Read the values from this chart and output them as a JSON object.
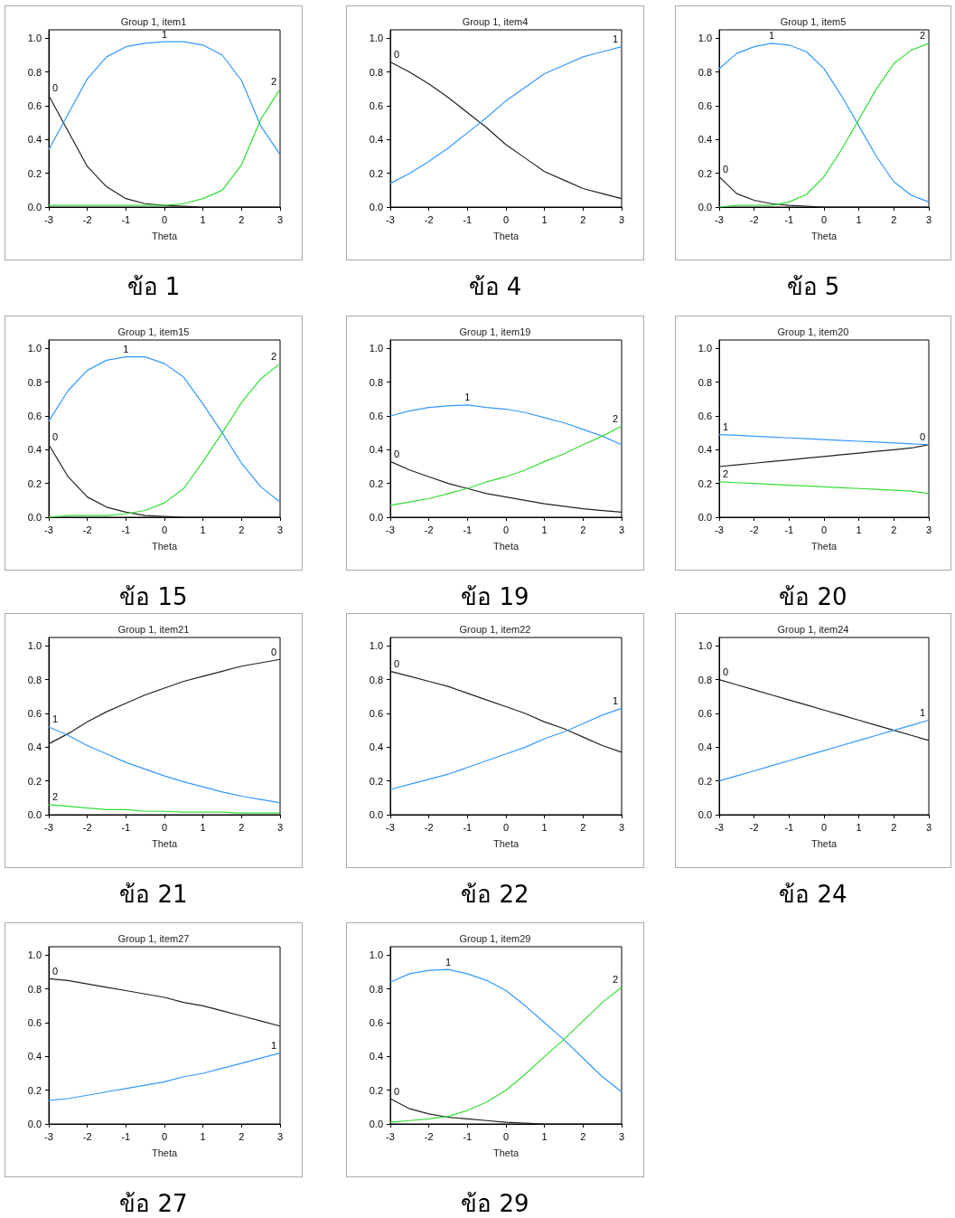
{
  "chart_data": [
    {
      "type": "line",
      "title": "Group 1, item1",
      "xlabel": "Theta",
      "annotations": [
        "ข้อ 1"
      ],
      "xlim": [
        -3,
        3
      ],
      "xticks": [
        -3,
        -2,
        -1,
        0,
        1,
        2,
        3
      ],
      "ylim": [
        0,
        1.05
      ],
      "yticks": [
        {
          "value": 0,
          "label": "0.0"
        },
        {
          "value": 0.2,
          "label": "0.2"
        },
        {
          "value": 0.4,
          "label": "0.4"
        },
        {
          "value": 0.6,
          "label": "0.6"
        },
        {
          "value": 0.8,
          "label": "0.8"
        },
        {
          "value": 1,
          "label": "1.0"
        }
      ],
      "grid": false,
      "legend": false,
      "marker": "none",
      "x": [
        -3,
        -2.5,
        -2,
        -1.5,
        -1,
        -0.5,
        0,
        0.5,
        1,
        1.5,
        2,
        2.5,
        3
      ],
      "series": [
        {
          "name": "0",
          "color": "#222222",
          "values": [
            0.66,
            0.45,
            0.24,
            0.12,
            0.05,
            0.02,
            0.01,
            0.005,
            0,
            0,
            0,
            0,
            0
          ]
        },
        {
          "name": "1",
          "color": "#3399ff",
          "values": [
            0.34,
            0.55,
            0.76,
            0.89,
            0.95,
            0.97,
            0.98,
            0.98,
            0.96,
            0.9,
            0.75,
            0.48,
            0.31
          ]
        },
        {
          "name": "2",
          "color": "#33dd33",
          "values": [
            0.01,
            0.01,
            0.01,
            0.01,
            0.01,
            0.01,
            0.01,
            0.02,
            0.05,
            0.1,
            0.25,
            0.52,
            0.7
          ]
        }
      ]
    },
    {
      "type": "line",
      "title": "Group 1, item4",
      "xlabel": "Theta",
      "annotations": [
        "ข้อ 4"
      ],
      "xlim": [
        -3,
        3
      ],
      "xticks": [
        -3,
        -2,
        -1,
        0,
        1,
        2,
        3
      ],
      "ylim": [
        0,
        1.05
      ],
      "yticks": [
        {
          "value": 0,
          "label": "0.0"
        },
        {
          "value": 0.2,
          "label": "0.2"
        },
        {
          "value": 0.4,
          "label": "0.4"
        },
        {
          "value": 0.6,
          "label": "0.6"
        },
        {
          "value": 0.8,
          "label": "0.8"
        },
        {
          "value": 1,
          "label": "1.0"
        }
      ],
      "grid": false,
      "legend": false,
      "marker": "none",
      "x": [
        -3,
        -2.5,
        -2,
        -1.5,
        -1,
        -0.5,
        0,
        0.5,
        1,
        1.5,
        2,
        2.5,
        3
      ],
      "series": [
        {
          "name": "0",
          "color": "#222222",
          "values": [
            0.86,
            0.8,
            0.73,
            0.65,
            0.56,
            0.47,
            0.37,
            0.29,
            0.21,
            0.16,
            0.11,
            0.08,
            0.05
          ]
        },
        {
          "name": "1",
          "color": "#3399ff",
          "values": [
            0.14,
            0.2,
            0.27,
            0.35,
            0.44,
            0.53,
            0.63,
            0.71,
            0.79,
            0.84,
            0.89,
            0.92,
            0.95
          ]
        }
      ]
    },
    {
      "type": "line",
      "title": "Group 1, item5",
      "xlabel": "Theta",
      "annotations": [
        "ข้อ 5"
      ],
      "xlim": [
        -3,
        3
      ],
      "xticks": [
        -3,
        -2,
        -1,
        0,
        1,
        2,
        3
      ],
      "ylim": [
        0,
        1.05
      ],
      "yticks": [
        {
          "value": 0,
          "label": "0.0"
        },
        {
          "value": 0.2,
          "label": "0.2"
        },
        {
          "value": 0.4,
          "label": "0.4"
        },
        {
          "value": 0.6,
          "label": "0.6"
        },
        {
          "value": 0.8,
          "label": "0.8"
        },
        {
          "value": 1,
          "label": "1.0"
        }
      ],
      "grid": false,
      "legend": false,
      "marker": "none",
      "x": [
        -3,
        -2.5,
        -2,
        -1.5,
        -1,
        -0.5,
        0,
        0.5,
        1,
        1.5,
        2,
        2.5,
        3
      ],
      "series": [
        {
          "name": "0",
          "color": "#222222",
          "values": [
            0.18,
            0.08,
            0.04,
            0.02,
            0.01,
            0.005,
            0,
            0,
            0,
            0,
            0,
            0,
            0
          ]
        },
        {
          "name": "1",
          "color": "#3399ff",
          "values": [
            0.82,
            0.91,
            0.95,
            0.97,
            0.96,
            0.92,
            0.82,
            0.66,
            0.48,
            0.3,
            0.15,
            0.07,
            0.03
          ]
        },
        {
          "name": "2",
          "color": "#33dd33",
          "values": [
            0,
            0.01,
            0.01,
            0.01,
            0.03,
            0.075,
            0.18,
            0.34,
            0.52,
            0.7,
            0.85,
            0.93,
            0.97
          ]
        }
      ]
    },
    {
      "type": "line",
      "title": "Group 1, item15",
      "xlabel": "Theta",
      "annotations": [
        "ข้อ 15"
      ],
      "xlim": [
        -3,
        3
      ],
      "xticks": [
        -3,
        -2,
        -1,
        0,
        1,
        2,
        3
      ],
      "ylim": [
        0,
        1.05
      ],
      "yticks": [
        {
          "value": 0,
          "label": "0.0"
        },
        {
          "value": 0.2,
          "label": "0.2"
        },
        {
          "value": 0.4,
          "label": "0.4"
        },
        {
          "value": 0.6,
          "label": "0.6"
        },
        {
          "value": 0.8,
          "label": "0.8"
        },
        {
          "value": 1,
          "label": "1.0"
        }
      ],
      "grid": false,
      "legend": false,
      "marker": "none",
      "x": [
        -3,
        -2.5,
        -2,
        -1.5,
        -1,
        -0.5,
        0,
        0.5,
        1,
        1.5,
        2,
        2.5,
        3
      ],
      "series": [
        {
          "name": "0",
          "color": "#222222",
          "values": [
            0.43,
            0.24,
            0.12,
            0.06,
            0.03,
            0.01,
            0.005,
            0,
            0,
            0,
            0,
            0,
            0
          ]
        },
        {
          "name": "1",
          "color": "#3399ff",
          "values": [
            0.57,
            0.75,
            0.87,
            0.93,
            0.95,
            0.95,
            0.91,
            0.83,
            0.67,
            0.5,
            0.32,
            0.18,
            0.09
          ]
        },
        {
          "name": "2",
          "color": "#33dd33",
          "values": [
            0,
            0.01,
            0.01,
            0.01,
            0.02,
            0.04,
            0.085,
            0.17,
            0.33,
            0.5,
            0.68,
            0.82,
            0.91
          ]
        }
      ]
    },
    {
      "type": "line",
      "title": "Group 1, item19",
      "xlabel": "Theta",
      "annotations": [
        "ข้อ 19"
      ],
      "xlim": [
        -3,
        3
      ],
      "xticks": [
        -3,
        -2,
        -1,
        0,
        1,
        2,
        3
      ],
      "ylim": [
        0,
        1.05
      ],
      "yticks": [
        {
          "value": 0,
          "label": "0.0"
        },
        {
          "value": 0.2,
          "label": "0.2"
        },
        {
          "value": 0.4,
          "label": "0.4"
        },
        {
          "value": 0.6,
          "label": "0.6"
        },
        {
          "value": 0.8,
          "label": "0.8"
        },
        {
          "value": 1,
          "label": "1.0"
        }
      ],
      "grid": false,
      "legend": false,
      "marker": "none",
      "x": [
        -3,
        -2.5,
        -2,
        -1.5,
        -1,
        -0.5,
        0,
        0.5,
        1,
        1.5,
        2,
        2.5,
        3
      ],
      "series": [
        {
          "name": "0",
          "color": "#222222",
          "values": [
            0.33,
            0.28,
            0.24,
            0.2,
            0.17,
            0.14,
            0.12,
            0.1,
            0.08,
            0.065,
            0.05,
            0.04,
            0.03
          ]
        },
        {
          "name": "1",
          "color": "#3399ff",
          "values": [
            0.6,
            0.63,
            0.65,
            0.66,
            0.665,
            0.65,
            0.64,
            0.62,
            0.59,
            0.56,
            0.52,
            0.48,
            0.43
          ]
        },
        {
          "name": "2",
          "color": "#33dd33",
          "values": [
            0.07,
            0.09,
            0.11,
            0.14,
            0.17,
            0.21,
            0.24,
            0.28,
            0.33,
            0.375,
            0.43,
            0.48,
            0.54
          ]
        }
      ]
    },
    {
      "type": "line",
      "title": "Group 1, item20",
      "xlabel": "Theta",
      "annotations": [
        "ข้อ 20"
      ],
      "xlim": [
        -3,
        3
      ],
      "xticks": [
        -3,
        -2,
        -1,
        0,
        1,
        2,
        3
      ],
      "ylim": [
        0,
        1.05
      ],
      "yticks": [
        {
          "value": 0,
          "label": "0.0"
        },
        {
          "value": 0.2,
          "label": "0.2"
        },
        {
          "value": 0.4,
          "label": "0.4"
        },
        {
          "value": 0.6,
          "label": "0.6"
        },
        {
          "value": 0.8,
          "label": "0.8"
        },
        {
          "value": 1,
          "label": "1.0"
        }
      ],
      "grid": false,
      "legend": false,
      "marker": "none",
      "x": [
        -3,
        -2.5,
        -2,
        -1.5,
        -1,
        -0.5,
        0,
        0.5,
        1,
        1.5,
        2,
        2.5,
        3
      ],
      "series": [
        {
          "name": "0",
          "color": "#222222",
          "values": [
            0.3,
            0.31,
            0.32,
            0.33,
            0.34,
            0.35,
            0.36,
            0.37,
            0.38,
            0.39,
            0.4,
            0.41,
            0.43
          ]
        },
        {
          "name": "1",
          "color": "#3399ff",
          "values": [
            0.49,
            0.485,
            0.48,
            0.475,
            0.47,
            0.465,
            0.46,
            0.455,
            0.45,
            0.445,
            0.44,
            0.435,
            0.43
          ]
        },
        {
          "name": "2",
          "color": "#33dd33",
          "values": [
            0.21,
            0.205,
            0.2,
            0.195,
            0.19,
            0.185,
            0.18,
            0.175,
            0.17,
            0.165,
            0.16,
            0.155,
            0.14
          ]
        }
      ]
    },
    {
      "type": "line",
      "title": "Group 1, item21",
      "xlabel": "Theta",
      "annotations": [
        "ข้อ 21"
      ],
      "xlim": [
        -3,
        3
      ],
      "xticks": [
        -3,
        -2,
        -1,
        0,
        1,
        2,
        3
      ],
      "ylim": [
        0,
        1.05
      ],
      "yticks": [
        {
          "value": 0,
          "label": "0.0"
        },
        {
          "value": 0.2,
          "label": "0.2"
        },
        {
          "value": 0.4,
          "label": "0.4"
        },
        {
          "value": 0.6,
          "label": "0.6"
        },
        {
          "value": 0.8,
          "label": "0.8"
        },
        {
          "value": 1,
          "label": "1.0"
        }
      ],
      "grid": false,
      "legend": false,
      "marker": "none",
      "x": [
        -3,
        -2.5,
        -2,
        -1.5,
        -1,
        -0.5,
        0,
        0.5,
        1,
        1.5,
        2,
        2.5,
        3
      ],
      "series": [
        {
          "name": "0",
          "color": "#222222",
          "values": [
            0.42,
            0.48,
            0.55,
            0.61,
            0.66,
            0.71,
            0.75,
            0.79,
            0.82,
            0.85,
            0.88,
            0.9,
            0.92
          ]
        },
        {
          "name": "1",
          "color": "#3399ff",
          "values": [
            0.52,
            0.47,
            0.41,
            0.36,
            0.31,
            0.27,
            0.23,
            0.195,
            0.165,
            0.135,
            0.11,
            0.09,
            0.07
          ]
        },
        {
          "name": "2",
          "color": "#33dd33",
          "values": [
            0.06,
            0.05,
            0.04,
            0.03,
            0.03,
            0.02,
            0.02,
            0.015,
            0.015,
            0.015,
            0.01,
            0.01,
            0.01
          ]
        }
      ]
    },
    {
      "type": "line",
      "title": "Group 1, item22",
      "xlabel": "Theta",
      "annotations": [
        "ข้อ 22"
      ],
      "xlim": [
        -3,
        3
      ],
      "xticks": [
        -3,
        -2,
        -1,
        0,
        1,
        2,
        3
      ],
      "ylim": [
        0,
        1.05
      ],
      "yticks": [
        {
          "value": 0,
          "label": "0.0"
        },
        {
          "value": 0.2,
          "label": "0.2"
        },
        {
          "value": 0.4,
          "label": "0.4"
        },
        {
          "value": 0.6,
          "label": "0.6"
        },
        {
          "value": 0.8,
          "label": "0.8"
        },
        {
          "value": 1,
          "label": "1.0"
        }
      ],
      "grid": false,
      "legend": false,
      "marker": "none",
      "x": [
        -3,
        -2.5,
        -2,
        -1.5,
        -1,
        -0.5,
        0,
        0.5,
        1,
        1.5,
        2,
        2.5,
        3
      ],
      "series": [
        {
          "name": "0",
          "color": "#222222",
          "values": [
            0.85,
            0.82,
            0.79,
            0.76,
            0.72,
            0.68,
            0.64,
            0.6,
            0.55,
            0.51,
            0.46,
            0.41,
            0.37
          ]
        },
        {
          "name": "1",
          "color": "#3399ff",
          "values": [
            0.15,
            0.18,
            0.21,
            0.24,
            0.28,
            0.32,
            0.36,
            0.4,
            0.45,
            0.49,
            0.54,
            0.59,
            0.63
          ]
        }
      ]
    },
    {
      "type": "line",
      "title": "Group 1, item24",
      "xlabel": "Theta",
      "annotations": [
        "ข้อ 24"
      ],
      "xlim": [
        -3,
        3
      ],
      "xticks": [
        -3,
        -2,
        -1,
        0,
        1,
        2,
        3
      ],
      "ylim": [
        0,
        1.05
      ],
      "yticks": [
        {
          "value": 0,
          "label": "0.0"
        },
        {
          "value": 0.2,
          "label": "0.2"
        },
        {
          "value": 0.4,
          "label": "0.4"
        },
        {
          "value": 0.6,
          "label": "0.6"
        },
        {
          "value": 0.8,
          "label": "0.8"
        },
        {
          "value": 1,
          "label": "1.0"
        }
      ],
      "grid": false,
      "legend": false,
      "marker": "none",
      "x": [
        -3,
        -2.5,
        -2,
        -1.5,
        -1,
        -0.5,
        0,
        0.5,
        1,
        1.5,
        2,
        2.5,
        3
      ],
      "series": [
        {
          "name": "0",
          "color": "#222222",
          "values": [
            0.8,
            0.77,
            0.74,
            0.71,
            0.68,
            0.65,
            0.62,
            0.59,
            0.56,
            0.53,
            0.5,
            0.47,
            0.44
          ]
        },
        {
          "name": "1",
          "color": "#3399ff",
          "values": [
            0.2,
            0.23,
            0.26,
            0.29,
            0.32,
            0.35,
            0.38,
            0.41,
            0.44,
            0.47,
            0.5,
            0.53,
            0.56
          ]
        }
      ]
    },
    {
      "type": "line",
      "title": "Group 1, item27",
      "xlabel": "Theta",
      "annotations": [
        "ข้อ 27"
      ],
      "xlim": [
        -3,
        3
      ],
      "xticks": [
        -3,
        -2,
        -1,
        0,
        1,
        2,
        3
      ],
      "ylim": [
        0,
        1.05
      ],
      "yticks": [
        {
          "value": 0,
          "label": "0.0"
        },
        {
          "value": 0.2,
          "label": "0.2"
        },
        {
          "value": 0.4,
          "label": "0.4"
        },
        {
          "value": 0.6,
          "label": "0.6"
        },
        {
          "value": 0.8,
          "label": "0.8"
        },
        {
          "value": 1,
          "label": "1.0"
        }
      ],
      "grid": false,
      "legend": false,
      "marker": "none",
      "x": [
        -3,
        -2.5,
        -2,
        -1.5,
        -1,
        -0.5,
        0,
        0.5,
        1,
        1.5,
        2,
        2.5,
        3
      ],
      "series": [
        {
          "name": "0",
          "color": "#222222",
          "values": [
            0.86,
            0.85,
            0.83,
            0.81,
            0.79,
            0.77,
            0.75,
            0.72,
            0.7,
            0.67,
            0.64,
            0.61,
            0.58
          ]
        },
        {
          "name": "1",
          "color": "#3399ff",
          "values": [
            0.14,
            0.15,
            0.17,
            0.19,
            0.21,
            0.23,
            0.25,
            0.28,
            0.3,
            0.33,
            0.36,
            0.39,
            0.42
          ]
        }
      ]
    },
    {
      "type": "line",
      "title": "Group 1, item29",
      "xlabel": "Theta",
      "annotations": [
        "ข้อ 29"
      ],
      "xlim": [
        -3,
        3
      ],
      "xticks": [
        -3,
        -2,
        -1,
        0,
        1,
        2,
        3
      ],
      "ylim": [
        0,
        1.05
      ],
      "yticks": [
        {
          "value": 0,
          "label": "0.0"
        },
        {
          "value": 0.2,
          "label": "0.2"
        },
        {
          "value": 0.4,
          "label": "0.4"
        },
        {
          "value": 0.6,
          "label": "0.6"
        },
        {
          "value": 0.8,
          "label": "0.8"
        },
        {
          "value": 1,
          "label": "1.0"
        }
      ],
      "grid": false,
      "legend": false,
      "marker": "none",
      "x": [
        -3,
        -2.5,
        -2,
        -1.5,
        -1,
        -0.5,
        0,
        0.5,
        1,
        1.5,
        2,
        2.5,
        3
      ],
      "series": [
        {
          "name": "0",
          "color": "#222222",
          "values": [
            0.15,
            0.09,
            0.06,
            0.04,
            0.03,
            0.02,
            0.01,
            0.005,
            0,
            0,
            0,
            0,
            0
          ]
        },
        {
          "name": "1",
          "color": "#3399ff",
          "values": [
            0.84,
            0.89,
            0.91,
            0.915,
            0.89,
            0.85,
            0.79,
            0.7,
            0.6,
            0.5,
            0.39,
            0.28,
            0.19
          ]
        },
        {
          "name": "2",
          "color": "#33dd33",
          "values": [
            0.01,
            0.02,
            0.03,
            0.045,
            0.08,
            0.13,
            0.2,
            0.295,
            0.4,
            0.5,
            0.61,
            0.72,
            0.81
          ]
        }
      ]
    }
  ]
}
